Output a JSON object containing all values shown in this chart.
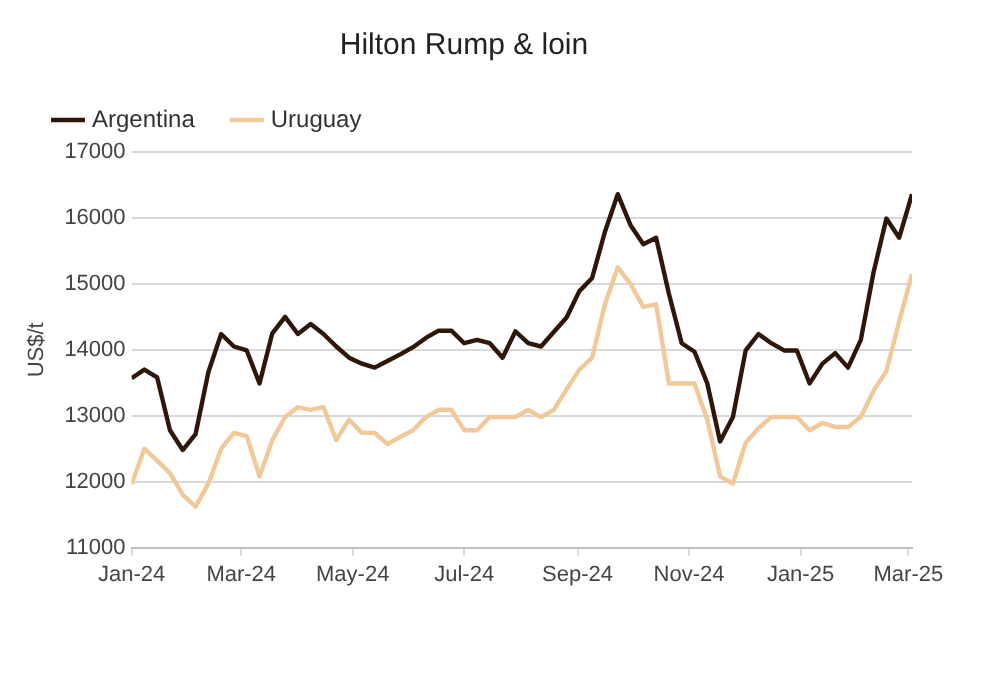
{
  "chart_data": {
    "type": "line",
    "title": "Hilton Rump & loin",
    "ylabel": "US$/t",
    "x": [
      "2024-01-01",
      "2024-01-08",
      "2024-01-15",
      "2024-01-22",
      "2024-01-29",
      "2024-02-05",
      "2024-02-12",
      "2024-02-19",
      "2024-02-26",
      "2024-03-04",
      "2024-03-11",
      "2024-03-18",
      "2024-03-25",
      "2024-04-01",
      "2024-04-08",
      "2024-04-15",
      "2024-04-22",
      "2024-04-29",
      "2024-05-06",
      "2024-05-13",
      "2024-05-20",
      "2024-05-27",
      "2024-06-03",
      "2024-06-10",
      "2024-06-17",
      "2024-06-24",
      "2024-07-01",
      "2024-07-08",
      "2024-07-15",
      "2024-07-22",
      "2024-07-29",
      "2024-08-05",
      "2024-08-12",
      "2024-08-19",
      "2024-08-26",
      "2024-09-02",
      "2024-09-09",
      "2024-09-16",
      "2024-09-23",
      "2024-09-30",
      "2024-10-07",
      "2024-10-14",
      "2024-10-21",
      "2024-10-28",
      "2024-11-04",
      "2024-11-11",
      "2024-11-18",
      "2024-11-25",
      "2024-12-02",
      "2024-12-09",
      "2024-12-16",
      "2024-12-23",
      "2024-12-30",
      "2025-01-06",
      "2025-01-13",
      "2025-01-20",
      "2025-01-27",
      "2025-02-03",
      "2025-02-10",
      "2025-02-17",
      "2025-02-24",
      "2025-03-03"
    ],
    "series": [
      {
        "name": "Argentina",
        "color": "#2e1608",
        "values": [
          13570,
          13700,
          13580,
          12780,
          12480,
          12720,
          13660,
          14240,
          14050,
          13990,
          13490,
          14250,
          14500,
          14240,
          14390,
          14240,
          14050,
          13880,
          13790,
          13730,
          13830,
          13930,
          14040,
          14180,
          14290,
          14290,
          14100,
          14150,
          14100,
          13880,
          14280,
          14100,
          14050,
          14270,
          14490,
          14890,
          15090,
          15790,
          16360,
          15890,
          15600,
          15700,
          14850,
          14100,
          13970,
          13490,
          12610,
          12980,
          13990,
          14240,
          14100,
          13990,
          13990,
          13490,
          13790,
          13950,
          13730,
          14150,
          15180,
          15990,
          15700,
          16360
        ]
      },
      {
        "name": "Uruguay",
        "color": "#f0c89a",
        "values": [
          11960,
          12500,
          12320,
          12130,
          11800,
          11620,
          11970,
          12500,
          12740,
          12690,
          12080,
          12630,
          12980,
          13130,
          13090,
          13130,
          12630,
          12940,
          12740,
          12740,
          12570,
          12680,
          12780,
          12980,
          13090,
          13090,
          12780,
          12780,
          12980,
          12980,
          12980,
          13090,
          12980,
          13090,
          13400,
          13700,
          13880,
          14690,
          15250,
          15000,
          14650,
          14690,
          13490,
          13490,
          13490,
          12940,
          12080,
          11970,
          12590,
          12810,
          12980,
          12980,
          12980,
          12780,
          12890,
          12830,
          12830,
          12980,
          13380,
          13680,
          14430,
          15150
        ]
      }
    ],
    "xlim": [
      "2024-01-01",
      "2025-03-03"
    ],
    "xticks": [
      {
        "value": "2024-01-01",
        "label": "Jan-24"
      },
      {
        "value": "2024-03-01",
        "label": "Mar-24"
      },
      {
        "value": "2024-05-01",
        "label": "May-24"
      },
      {
        "value": "2024-07-01",
        "label": "Jul-24"
      },
      {
        "value": "2024-09-01",
        "label": "Sep-24"
      },
      {
        "value": "2024-11-01",
        "label": "Nov-24"
      },
      {
        "value": "2025-01-01",
        "label": "Jan-25"
      },
      {
        "value": "2025-03-01",
        "label": "Mar-25"
      }
    ],
    "ylim": [
      11000,
      17000
    ],
    "yticks": [
      11000,
      12000,
      13000,
      14000,
      15000,
      16000,
      17000
    ],
    "grid": "y",
    "legend": "top left",
    "marker": "none",
    "line_style": "solid"
  }
}
